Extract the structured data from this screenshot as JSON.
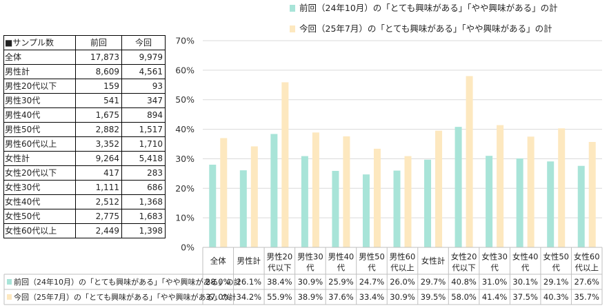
{
  "legend": {
    "prev": "前回（24年10月）の「とても興味がある」「やや興味がある」の計",
    "curr": "今回（25年7月）の「とても興味がある」「やや興味がある」の計"
  },
  "colors": {
    "prev": "#a8e4d8",
    "curr": "#fde8bf",
    "grid": "#d9d9d9",
    "axis": "#bfbfbf"
  },
  "sample_table": {
    "headers": [
      "■サンプル数",
      "前回",
      "今回"
    ],
    "rows": [
      [
        "全体",
        "17,873",
        "9,979"
      ],
      [
        "男性計",
        "8,609",
        "4,561"
      ],
      [
        "男性20代以下",
        "159",
        "93"
      ],
      [
        "男性30代",
        "541",
        "347"
      ],
      [
        "男性40代",
        "1,675",
        "894"
      ],
      [
        "男性50代",
        "2,882",
        "1,517"
      ],
      [
        "男性60代以上",
        "3,352",
        "1,710"
      ],
      [
        "女性計",
        "9,264",
        "5,418"
      ],
      [
        "女性20代以下",
        "417",
        "283"
      ],
      [
        "女性30代",
        "1,111",
        "686"
      ],
      [
        "女性40代",
        "2,512",
        "1,368"
      ],
      [
        "女性50代",
        "2,775",
        "1,683"
      ],
      [
        "女性60代以上",
        "2,449",
        "1,398"
      ]
    ]
  },
  "chart_data": {
    "type": "bar",
    "title": "",
    "xlabel": "",
    "ylabel": "",
    "ylim": [
      0,
      70
    ],
    "yticks": [
      "0%",
      "10%",
      "20%",
      "30%",
      "40%",
      "50%",
      "60%",
      "70%"
    ],
    "grid": true,
    "legend_position": "top-right",
    "categories": [
      [
        "全体"
      ],
      [
        "男性計"
      ],
      [
        "男性20",
        "代以下"
      ],
      [
        "男性30",
        "代"
      ],
      [
        "男性40",
        "代"
      ],
      [
        "男性50",
        "代"
      ],
      [
        "男性60",
        "代以上"
      ],
      [
        "女性計"
      ],
      [
        "女性20",
        "代以下"
      ],
      [
        "女性30",
        "代"
      ],
      [
        "女性40",
        "代"
      ],
      [
        "女性50",
        "代"
      ],
      [
        "女性60",
        "代以上"
      ]
    ],
    "series": [
      {
        "name": "前回（24年10月）の「とても興味がある」「やや興味がある」の計",
        "key": "prev",
        "values": [
          28.0,
          26.1,
          38.4,
          30.9,
          25.9,
          24.7,
          26.0,
          29.7,
          40.8,
          31.0,
          30.1,
          29.1,
          27.6
        ],
        "labels": [
          "28.0%",
          "26.1%",
          "38.4%",
          "30.9%",
          "25.9%",
          "24.7%",
          "26.0%",
          "29.7%",
          "40.8%",
          "31.0%",
          "30.1%",
          "29.1%",
          "27.6%"
        ]
      },
      {
        "name": "今回（25年7月）の「とても興味がある」「やや興味がある」の計",
        "key": "curr",
        "values": [
          37.0,
          34.2,
          55.9,
          38.9,
          37.6,
          33.4,
          30.9,
          39.5,
          58.0,
          41.4,
          37.5,
          40.3,
          35.7
        ],
        "labels": [
          "37.0%",
          "34.2%",
          "55.9%",
          "38.9%",
          "37.6%",
          "33.4%",
          "30.9%",
          "39.5%",
          "58.0%",
          "41.4%",
          "37.5%",
          "40.3%",
          "35.7%"
        ]
      }
    ]
  }
}
